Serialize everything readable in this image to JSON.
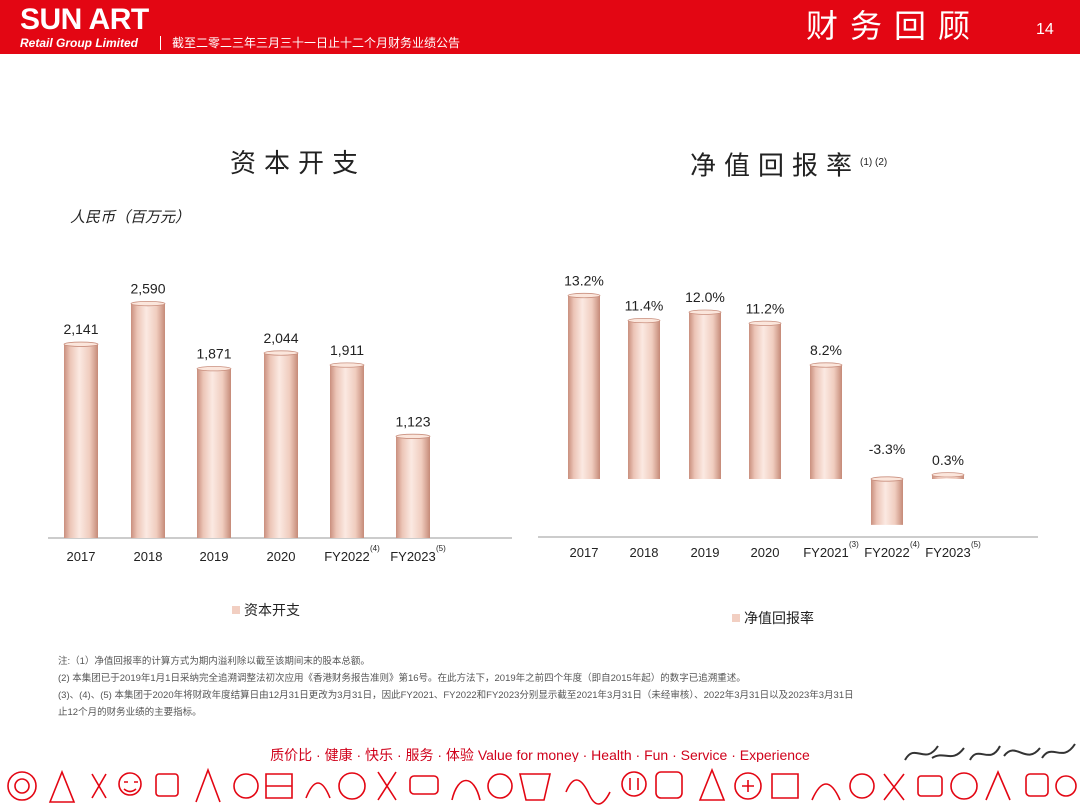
{
  "header": {
    "brand": "SUN ART",
    "brand_sub": "Retail Group Limited",
    "caption": "截至二零二三年三月三十一日止十二个月财务业绩公告",
    "section_title": "财务回顾",
    "page_number": "14"
  },
  "colors": {
    "brand_red": "#e30613",
    "bar_fill": "#f2cfc2",
    "bar_dark": "#c98f7e"
  },
  "left_chart": {
    "title": "资本开支",
    "unit": "人民币（百万元）",
    "legend": "资本开支",
    "category_notes": [
      "",
      "",
      "",
      "",
      "(4)",
      "(5)"
    ]
  },
  "right_chart": {
    "title": "净值回报率",
    "title_note": "(1) (2)",
    "legend": "净值回报率",
    "category_notes": [
      "",
      "",
      "",
      "",
      "(3)",
      "(4)",
      "(5)"
    ],
    "value_labels": [
      "13.2%",
      "11.4%",
      "12.0%",
      "11.2%",
      "8.2%",
      "-3.3%",
      "0.3%"
    ]
  },
  "chart_data": [
    {
      "type": "bar",
      "title": "资本开支",
      "ylabel": "人民币（百万元）",
      "categories": [
        "2017",
        "2018",
        "2019",
        "2020",
        "FY2022",
        "FY2023"
      ],
      "series": [
        {
          "name": "资本开支",
          "values": [
            2141,
            2590,
            1871,
            2044,
            1911,
            1123
          ]
        }
      ],
      "value_labels": [
        "2,141",
        "2,590",
        "1,871",
        "2,044",
        "1,911",
        "1,123"
      ],
      "legend_position": "bottom"
    },
    {
      "type": "bar",
      "title": "净值回报率",
      "categories": [
        "2017",
        "2018",
        "2019",
        "2020",
        "FY2021",
        "FY2022",
        "FY2023"
      ],
      "series": [
        {
          "name": "净值回报率",
          "values": [
            13.2,
            11.4,
            12.0,
            11.2,
            8.2,
            -3.3,
            0.3
          ]
        }
      ],
      "legend_position": "bottom"
    }
  ],
  "notes": [
    "注:（1）净值回报率的计算方式为期内溢利除以截至该期间末的股本总额。",
    "(2) 本集团已于2019年1月1日采纳完全追溯调整法初次应用《香港财务报告准则》第16号。在此方法下，2019年之前四个年度（即自2015年起）的数字已追溯重述。",
    "(3)、(4)、(5) 本集团于2020年将财政年度结算日由12月31日更改为3月31日，因此FY2021、FY2022和FY2023分别显示截至2021年3月31日（未经审核）、2022年3月31日以及2023年3月31日",
    "止12个月的财务业绩的主要指标。"
  ],
  "footer": {
    "slogan": "质价比 · 健康 · 快乐 · 服务 · 体验    Value for money · Health · Fun · Service · Experience"
  }
}
